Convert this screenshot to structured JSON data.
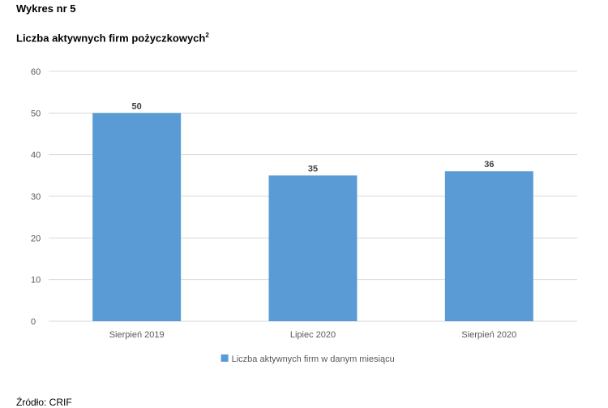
{
  "header": {
    "figure_number": "Wykres nr 5",
    "title": "Liczba aktywnych firm pożyczkowych",
    "footnote_mark": "2"
  },
  "footer": {
    "source": "Źródło: CRIF"
  },
  "chart_data": {
    "type": "bar",
    "title": "",
    "xlabel": "",
    "ylabel": "",
    "categories": [
      "Sierpień 2019",
      "Lipiec 2020",
      "Sierpień 2020"
    ],
    "series": [
      {
        "name": "Liczba aktywnych firm w danym miesiącu",
        "values": [
          50,
          35,
          36
        ]
      }
    ],
    "ylim": [
      0,
      60
    ],
    "yticks": [
      0,
      10,
      20,
      30,
      40,
      50,
      60
    ],
    "grid": true,
    "data_labels": true,
    "legend_position": "bottom-center",
    "colors": {
      "bar": "#5b9bd5",
      "grid": "#d9d9d9",
      "tick_text": "#595959",
      "label_text": "#404040"
    }
  }
}
